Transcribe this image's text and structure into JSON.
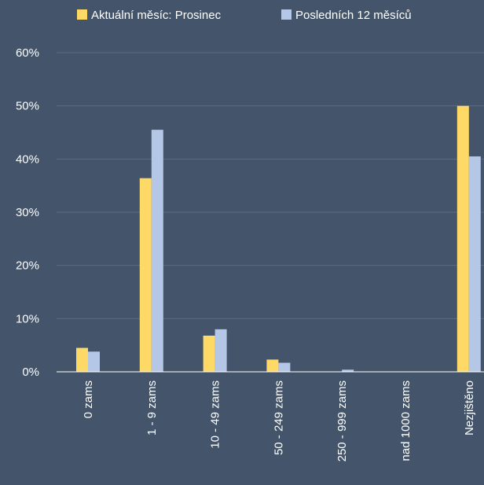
{
  "colors": {
    "background": "#44546a",
    "series_current": "#ffd966",
    "series_last12": "#b4c7e7",
    "gridline": "#5b6b81",
    "axis": "#ffffff",
    "text": "#ffffff"
  },
  "chart_data": {
    "type": "bar",
    "title": "",
    "xlabel": "",
    "ylabel": "",
    "ylim": [
      0,
      0.6
    ],
    "yticks": [
      0,
      0.1,
      0.2,
      0.3,
      0.4,
      0.5,
      0.6
    ],
    "ytick_labels": [
      "0%",
      "10%",
      "20%",
      "30%",
      "40%",
      "50%",
      "60%"
    ],
    "grid": true,
    "legend_position": "top",
    "categories": [
      "0 zams",
      "1 - 9 zams",
      "10 - 49 zams",
      "50 - 249 zams",
      "250 - 999 zams",
      "nad 1000 zams",
      "Nezjištěno"
    ],
    "series": [
      {
        "name": "Aktuální měsíc: Prosinec",
        "color": "#ffd966",
        "values": [
          0.045,
          0.364,
          0.068,
          0.023,
          0.0,
          0.0,
          0.5
        ]
      },
      {
        "name": "Posledních 12 měsíců",
        "color": "#b4c7e7",
        "values": [
          0.038,
          0.455,
          0.08,
          0.017,
          0.004,
          0.0,
          0.405
        ]
      }
    ]
  }
}
